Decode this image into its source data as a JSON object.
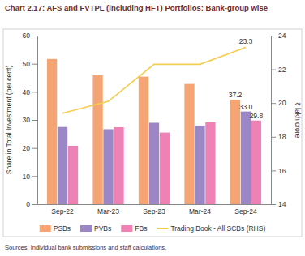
{
  "chart_data": {
    "type": "bar",
    "title": "Chart 2.17: AFS and FVTPL (including HFT) Portfolios: Bank-group wise",
    "source": "Sources: Individual bank submissions and staff calculations.",
    "categories": [
      "Sep-22",
      "Mar-23",
      "Sep-23",
      "Mar-24",
      "Sep-24"
    ],
    "y_label": "Share in Total Investment (per cent)",
    "y2_label": "₹ lakh crore",
    "ylim": [
      0,
      60
    ],
    "yticks": [
      0,
      10,
      20,
      30,
      40,
      50,
      60
    ],
    "y2lim": [
      14,
      24
    ],
    "y2ticks": [
      14,
      16,
      18,
      20,
      22,
      24
    ],
    "grid": false,
    "legend": "bottom",
    "series": [
      {
        "name": "PSBs",
        "type": "bar",
        "color": "#f5a574",
        "values": [
          51.7,
          45.9,
          45.4,
          42.8,
          37.2
        ],
        "value_labels": [
          null,
          null,
          null,
          null,
          "37.2"
        ]
      },
      {
        "name": "PVBs",
        "type": "bar",
        "color": "#9b87c5",
        "values": [
          27.5,
          26.7,
          29.0,
          28.0,
          33.0
        ],
        "value_labels": [
          null,
          null,
          null,
          null,
          "33.0"
        ]
      },
      {
        "name": "FBs",
        "type": "bar",
        "color": "#ee82b5",
        "values": [
          20.8,
          27.4,
          25.5,
          29.2,
          29.8
        ],
        "value_labels": [
          null,
          null,
          null,
          null,
          "29.8"
        ]
      },
      {
        "name": "Trading Book - All SCBs (RHS)",
        "type": "line",
        "axis": "y2",
        "color": "#f5cd4f",
        "values": [
          19.4,
          20.1,
          22.3,
          22.3,
          23.3
        ],
        "value_labels": [
          null,
          null,
          null,
          null,
          "23.3"
        ]
      }
    ]
  }
}
